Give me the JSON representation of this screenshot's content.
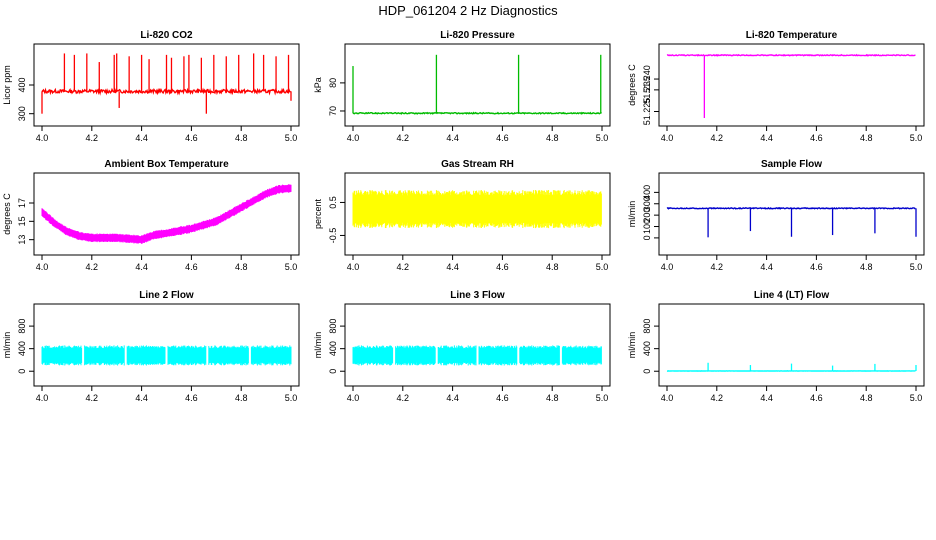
{
  "page": {
    "title": "HDP_061204  2 Hz Diagnostics"
  },
  "chart_data": [
    {
      "type": "line",
      "title": "Li-820 CO2",
      "ylabel": "Licor ppm",
      "color": "#ff0000",
      "xlim": [
        4.0,
        5.0
      ],
      "ylim": [
        285,
        515
      ],
      "xticks": [
        "4.0",
        "4.2",
        "4.4",
        "4.6",
        "4.8",
        "5.0"
      ],
      "xtick_values": [
        4.0,
        4.2,
        4.4,
        4.6,
        4.8,
        5.0
      ],
      "yticks": [
        "300",
        "400"
      ],
      "ytick_values": [
        300,
        400
      ],
      "series": [
        {
          "name": "CO2",
          "kind": "noise",
          "base": 378,
          "amp": 6,
          "spikes": [
            [
              4.0,
              300
            ],
            [
              4.09,
              510
            ],
            [
              4.13,
              505
            ],
            [
              4.18,
              510
            ],
            [
              4.23,
              480
            ],
            [
              4.29,
              505
            ],
            [
              4.3,
              510
            ],
            [
              4.31,
              320
            ],
            [
              4.35,
              500
            ],
            [
              4.4,
              505
            ],
            [
              4.43,
              490
            ],
            [
              4.5,
              505
            ],
            [
              4.52,
              495
            ],
            [
              4.57,
              500
            ],
            [
              4.59,
              505
            ],
            [
              4.64,
              495
            ],
            [
              4.66,
              300
            ],
            [
              4.69,
              505
            ],
            [
              4.74,
              500
            ],
            [
              4.79,
              505
            ],
            [
              4.85,
              510
            ],
            [
              4.89,
              505
            ],
            [
              4.94,
              500
            ],
            [
              4.99,
              505
            ],
            [
              5.0,
              345
            ]
          ],
          "x_start": 4.0,
          "x_end": 5.0
        }
      ]
    },
    {
      "type": "line",
      "title": "Li-820 Pressure",
      "ylabel": "kPa",
      "color": "#00bb00",
      "xlim": [
        4.0,
        5.0
      ],
      "ylim": [
        67.5,
        91
      ],
      "xticks": [
        "4.0",
        "4.2",
        "4.4",
        "4.6",
        "4.8",
        "5.0"
      ],
      "xtick_values": [
        4.0,
        4.2,
        4.4,
        4.6,
        4.8,
        5.0
      ],
      "yticks": [
        "70",
        "80"
      ],
      "ytick_values": [
        70,
        80
      ],
      "series": [
        {
          "name": "Pressure",
          "kind": "noise",
          "base": 69.2,
          "amp": 0.2,
          "spikes": [
            [
              4.0,
              86
            ],
            [
              4.335,
              90
            ],
            [
              4.665,
              90
            ],
            [
              4.995,
              90
            ]
          ],
          "x_start": 4.0,
          "x_end": 5.0
        }
      ]
    },
    {
      "type": "line",
      "title": "Li-820 Temperature",
      "ylabel": "degrees C",
      "color": "#ff00ff",
      "xlim": [
        4.0,
        5.0
      ],
      "ylim": [
        51.222,
        51.2525
      ],
      "xticks": [
        "4.0",
        "4.2",
        "4.4",
        "4.6",
        "4.8",
        "5.0"
      ],
      "xtick_values": [
        4.0,
        4.2,
        4.4,
        4.6,
        4.8,
        5.0
      ],
      "yticks": [
        "51.225",
        "51.235",
        "51.240"
      ],
      "ytick_values": [
        51.225,
        51.235,
        51.24
      ],
      "series": [
        {
          "name": "Temperature",
          "kind": "noise",
          "base": 51.251,
          "amp": 0.0002,
          "spikes": [
            [
              4.15,
              51.222
            ]
          ],
          "x_start": 4.0,
          "x_end": 5.0
        }
      ]
    },
    {
      "type": "line",
      "title": "Ambient Box Temperature",
      "ylabel": "degrees C",
      "color": "#ff00ff",
      "xlim": [
        4.0,
        5.0
      ],
      "ylim": [
        12.2,
        19.4
      ],
      "xticks": [
        "4.0",
        "4.2",
        "4.4",
        "4.6",
        "4.8",
        "5.0"
      ],
      "xtick_values": [
        4.0,
        4.2,
        4.4,
        4.6,
        4.8,
        5.0
      ],
      "yticks": [
        "13",
        "15",
        "17"
      ],
      "ytick_values": [
        13,
        15,
        17
      ],
      "series": [
        {
          "name": "Box temperature",
          "kind": "band",
          "amp": 0.45,
          "curve": [
            [
              4.0,
              16.0
            ],
            [
              4.05,
              14.8
            ],
            [
              4.1,
              13.9
            ],
            [
              4.15,
              13.4
            ],
            [
              4.2,
              13.2
            ],
            [
              4.3,
              13.2
            ],
            [
              4.4,
              13.0
            ],
            [
              4.45,
              13.5
            ],
            [
              4.5,
              13.7
            ],
            [
              4.6,
              14.2
            ],
            [
              4.7,
              15.0
            ],
            [
              4.8,
              16.5
            ],
            [
              4.9,
              18.0
            ],
            [
              4.95,
              18.5
            ],
            [
              5.0,
              18.6
            ]
          ],
          "x_start": 4.0,
          "x_end": 5.0
        }
      ]
    },
    {
      "type": "line",
      "title": "Gas Stream RH",
      "ylabel": "percent",
      "color": "#ffff00",
      "xlim": [
        4.0,
        5.0
      ],
      "ylim": [
        -0.85,
        1.15
      ],
      "xticks": [
        "4.0",
        "4.2",
        "4.4",
        "4.6",
        "4.8",
        "5.0"
      ],
      "xtick_values": [
        4.0,
        4.2,
        4.4,
        4.6,
        4.8,
        5.0
      ],
      "yticks": [
        "-0.5",
        "0.5"
      ],
      "ytick_values": [
        -0.5,
        0.5
      ],
      "series": [
        {
          "name": "RH",
          "kind": "band",
          "amp": 0.55,
          "curve": [
            [
              4.0,
              0.3
            ],
            [
              5.0,
              0.3
            ]
          ],
          "x_start": 4.0,
          "x_end": 5.0
        }
      ]
    },
    {
      "type": "line",
      "title": "Sample Flow",
      "ylabel": "ml/min",
      "color": "#0000cc",
      "xlim": [
        4.0,
        5.0
      ],
      "ylim": [
        -80,
        500
      ],
      "xticks": [
        "4.0",
        "4.2",
        "4.4",
        "4.6",
        "4.8",
        "5.0"
      ],
      "xtick_values": [
        4.0,
        4.2,
        4.4,
        4.6,
        4.8,
        5.0
      ],
      "yticks": [
        "0",
        "100",
        "200",
        "300",
        "400"
      ],
      "ytick_values": [
        0,
        100,
        200,
        300,
        400
      ],
      "series": [
        {
          "name": "Sample flow",
          "kind": "noise",
          "base": 260,
          "amp": 4,
          "spikes": [
            [
              4.165,
              5
            ],
            [
              4.335,
              60
            ],
            [
              4.5,
              10
            ],
            [
              4.665,
              25
            ],
            [
              4.835,
              40
            ],
            [
              5.0,
              10
            ]
          ],
          "x_start": 4.0,
          "x_end": 5.0
        }
      ]
    },
    {
      "type": "line",
      "title": "Line 2 Flow",
      "ylabel": "ml/min",
      "color": "#00ffff",
      "xlim": [
        4.0,
        5.0
      ],
      "ylim": [
        -120,
        1050
      ],
      "xticks": [
        "4.0",
        "4.2",
        "4.4",
        "4.6",
        "4.8",
        "5.0"
      ],
      "xtick_values": [
        4.0,
        4.2,
        4.4,
        4.6,
        4.8,
        5.0
      ],
      "yticks": [
        "0",
        "400",
        "800"
      ],
      "ytick_values": [
        0,
        400,
        800
      ],
      "series": [
        {
          "name": "Line 2 flow",
          "kind": "band",
          "amp": 170,
          "curve": [
            [
              4.0,
              280
            ],
            [
              5.0,
              280
            ]
          ],
          "gaps": [
            4.165,
            4.335,
            4.5,
            4.665,
            4.835
          ],
          "x_start": 4.0,
          "x_end": 5.0
        }
      ]
    },
    {
      "type": "line",
      "title": "Line 3 Flow",
      "ylabel": "ml/min",
      "color": "#00ffff",
      "xlim": [
        4.0,
        5.0
      ],
      "ylim": [
        -120,
        1050
      ],
      "xticks": [
        "4.0",
        "4.2",
        "4.4",
        "4.6",
        "4.8",
        "5.0"
      ],
      "xtick_values": [
        4.0,
        4.2,
        4.4,
        4.6,
        4.8,
        5.0
      ],
      "yticks": [
        "0",
        "400",
        "800"
      ],
      "ytick_values": [
        0,
        400,
        800
      ],
      "series": [
        {
          "name": "Line 3 flow",
          "kind": "band",
          "amp": 170,
          "curve": [
            [
              4.0,
              280
            ],
            [
              5.0,
              280
            ]
          ],
          "gaps": [
            4.165,
            4.335,
            4.5,
            4.665,
            4.835
          ],
          "x_start": 4.0,
          "x_end": 5.0
        }
      ]
    },
    {
      "type": "line",
      "title": "Line 4 (LT) Flow",
      "ylabel": "ml/min",
      "color": "#00ffff",
      "xlim": [
        4.0,
        5.0
      ],
      "ylim": [
        -120,
        1050
      ],
      "xticks": [
        "4.0",
        "4.2",
        "4.4",
        "4.6",
        "4.8",
        "5.0"
      ],
      "xtick_values": [
        4.0,
        4.2,
        4.4,
        4.6,
        4.8,
        5.0
      ],
      "yticks": [
        "0",
        "400",
        "800"
      ],
      "ytick_values": [
        0,
        400,
        800
      ],
      "series": [
        {
          "name": "Line 4 flow",
          "kind": "noise",
          "base": 5,
          "amp": 2,
          "spikes": [
            [
              4.165,
              150
            ],
            [
              4.335,
              110
            ],
            [
              4.5,
              135
            ],
            [
              4.665,
              100
            ],
            [
              4.835,
              130
            ],
            [
              5.0,
              110
            ]
          ],
          "x_start": 4.0,
          "x_end": 5.0
        }
      ]
    }
  ]
}
